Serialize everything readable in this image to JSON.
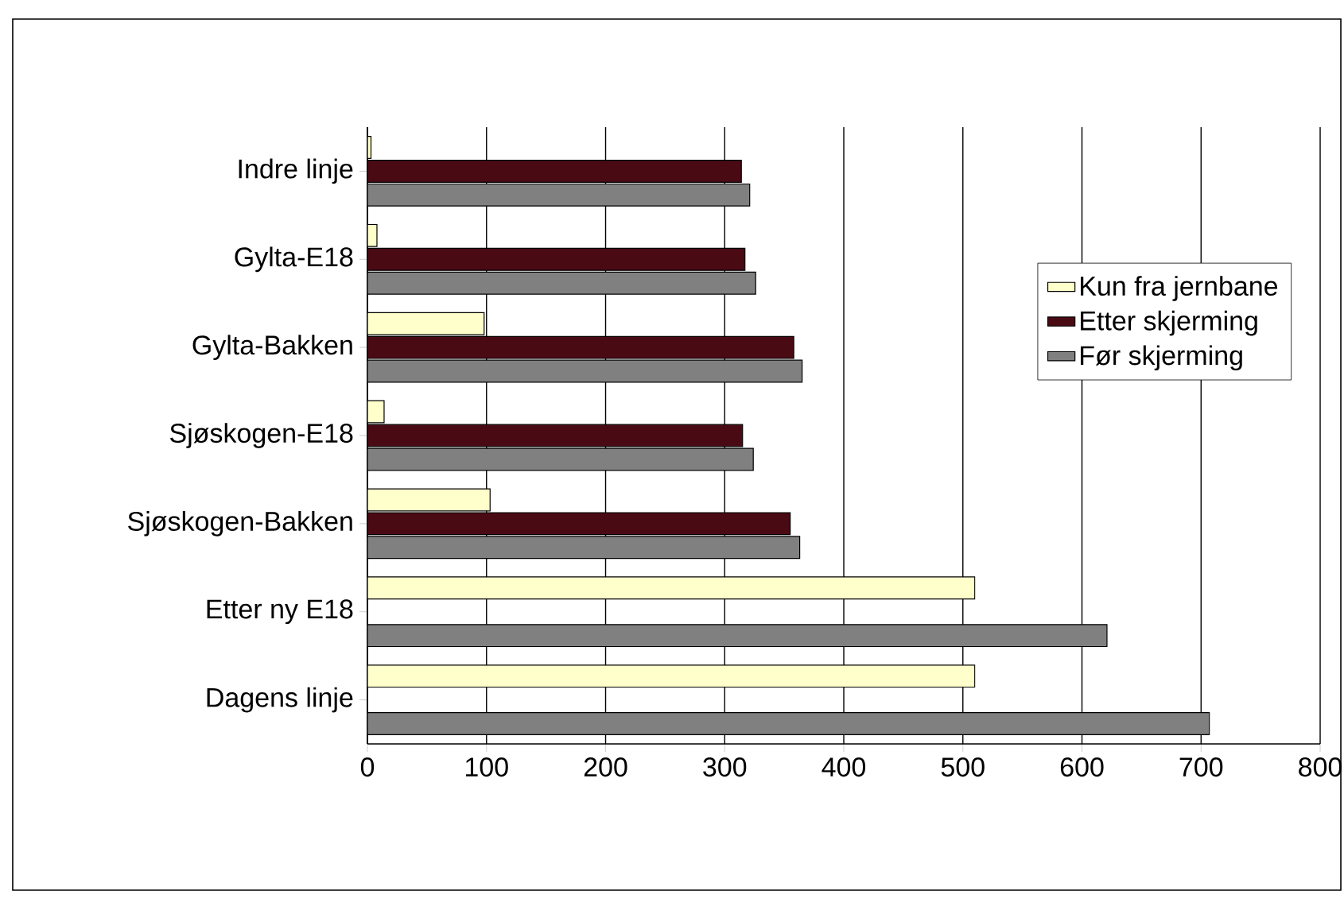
{
  "chart_data": {
    "type": "bar",
    "orientation": "horizontal",
    "categories": [
      "Indre linje",
      "Gylta-E18",
      "Gylta-Bakken",
      "Sjøskogen-E18",
      "Sjøskogen-Bakken",
      "Etter ny E18",
      "Dagens linje"
    ],
    "series": [
      {
        "name": "Kun fra jernbane",
        "color": "#ffffcc",
        "values": [
          3,
          8,
          98,
          14,
          103,
          510,
          510
        ]
      },
      {
        "name": "Etter skjerming",
        "color": "#4a0a14",
        "values": [
          314,
          317,
          358,
          315,
          355,
          null,
          null
        ]
      },
      {
        "name": "Før skjerming",
        "color": "#808080",
        "values": [
          321,
          326,
          365,
          324,
          363,
          621,
          707
        ]
      }
    ],
    "xlim": [
      0,
      800
    ],
    "xticks": [
      0,
      100,
      200,
      300,
      400,
      500,
      600,
      700,
      800
    ],
    "grid": "x",
    "legend": "top right"
  }
}
